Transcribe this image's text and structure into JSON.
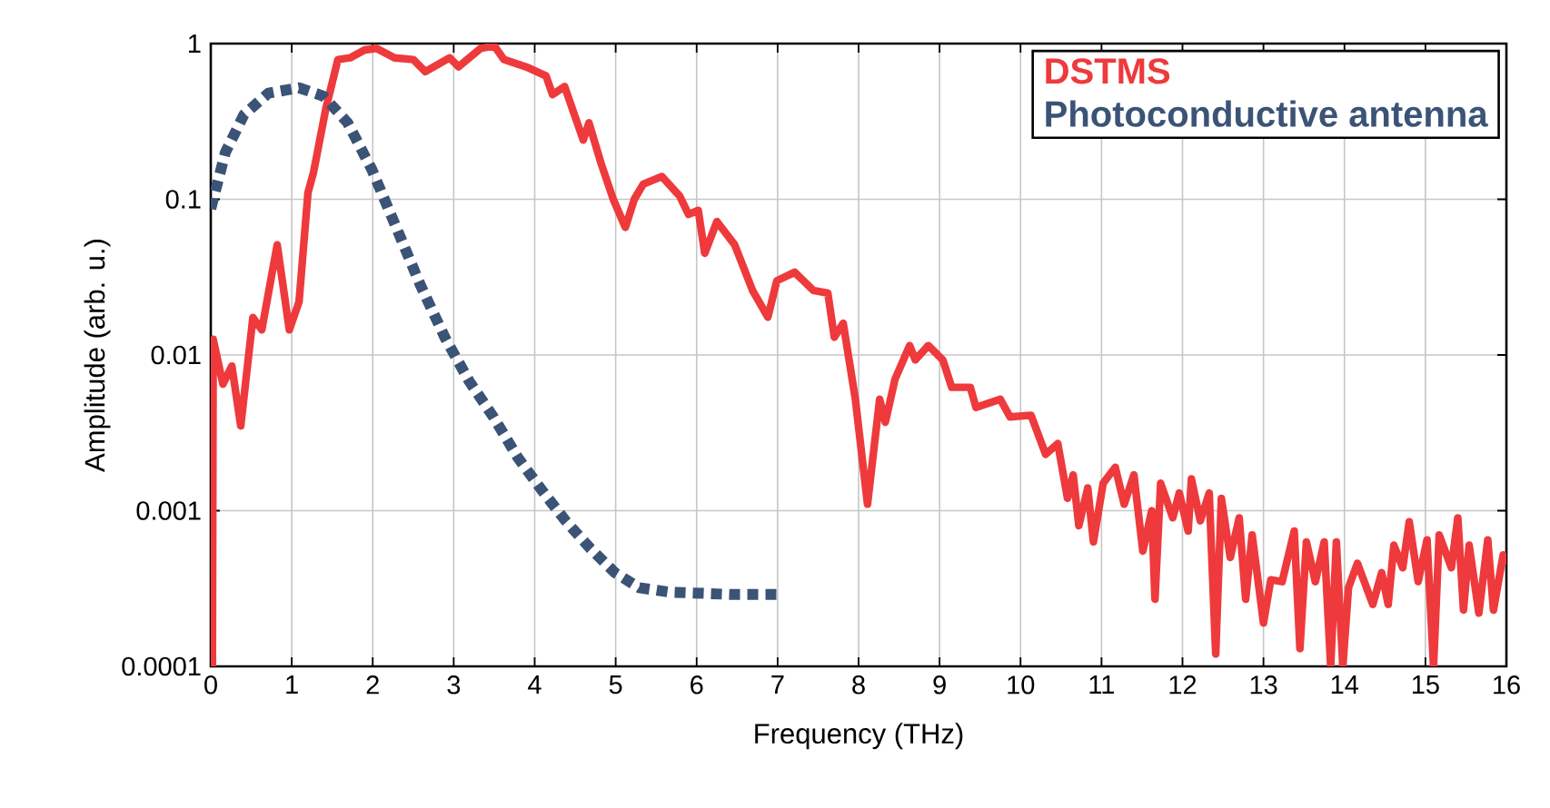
{
  "chart_data": {
    "type": "line",
    "xlabel": "Frequency (THz)",
    "ylabel": "Amplitude (arb. u.)",
    "log": "y",
    "grid": true,
    "legend": "top right",
    "marker": "none",
    "xlim": [
      0,
      16
    ],
    "ylim": [
      0.0001,
      1
    ],
    "xticks": [
      0,
      1,
      2,
      3,
      4,
      5,
      6,
      7,
      8,
      9,
      10,
      11,
      12,
      13,
      14,
      15,
      16
    ],
    "yticks": [
      0.0001,
      0.001,
      0.01,
      0.1,
      1
    ],
    "series": [
      {
        "name": "DSTMS",
        "color": "#ee3a3c",
        "line_style": "solid",
        "x": [
          0.02,
          0.03,
          0.15,
          0.26,
          0.37,
          0.52,
          0.63,
          0.82,
          0.97,
          1.09,
          1.2,
          1.27,
          1.42,
          1.57,
          1.72,
          1.9,
          2.05,
          2.27,
          2.5,
          2.65,
          2.95,
          3.06,
          3.33,
          3.5,
          3.62,
          3.92,
          4.14,
          4.22,
          4.37,
          4.6,
          4.67,
          4.82,
          4.97,
          5.12,
          5.23,
          5.34,
          5.57,
          5.79,
          5.9,
          6.02,
          6.1,
          6.25,
          6.47,
          6.69,
          6.88,
          6.99,
          7.21,
          7.44,
          7.62,
          7.7,
          7.81,
          7.96,
          8.11,
          8.26,
          8.33,
          8.45,
          8.63,
          8.7,
          8.86,
          9.04,
          9.15,
          9.38,
          9.45,
          9.75,
          9.87,
          10.13,
          10.31,
          10.46,
          10.58,
          10.65,
          10.72,
          10.83,
          10.9,
          11.02,
          11.17,
          11.28,
          11.4,
          11.51,
          11.62,
          11.66,
          11.73,
          11.88,
          11.96,
          12.07,
          12.11,
          12.22,
          12.33,
          12.41,
          12.48,
          12.59,
          12.7,
          12.78,
          12.86,
          13.0,
          13.09,
          13.23,
          13.38,
          13.45,
          13.53,
          13.64,
          13.75,
          13.83,
          13.9,
          13.98,
          14.05,
          14.16,
          14.35,
          14.46,
          14.54,
          14.61,
          14.72,
          14.8,
          14.91,
          15.02,
          15.1,
          15.17,
          15.32,
          15.4,
          15.47,
          15.54,
          15.66,
          15.77,
          15.84,
          15.96,
          16
        ],
        "values": [
          0.0001,
          0.0126,
          0.0065,
          0.0085,
          0.0035,
          0.0174,
          0.0145,
          0.051,
          0.0145,
          0.022,
          0.11,
          0.15,
          0.38,
          0.79,
          0.81,
          0.91,
          0.93,
          0.81,
          0.79,
          0.66,
          0.81,
          0.71,
          0.93,
          0.97,
          0.79,
          0.7,
          0.62,
          0.47,
          0.53,
          0.24,
          0.31,
          0.17,
          0.1,
          0.066,
          0.1,
          0.125,
          0.14,
          0.105,
          0.08,
          0.085,
          0.045,
          0.072,
          0.051,
          0.026,
          0.0175,
          0.03,
          0.034,
          0.026,
          0.025,
          0.013,
          0.016,
          0.0052,
          0.0011,
          0.0052,
          0.0037,
          0.007,
          0.0115,
          0.0093,
          0.0115,
          0.0093,
          0.0062,
          0.0062,
          0.0046,
          0.0052,
          0.004,
          0.0041,
          0.0023,
          0.0027,
          0.0012,
          0.0017,
          0.0008,
          0.0014,
          0.00063,
          0.0015,
          0.0019,
          0.0011,
          0.0017,
          0.00055,
          0.001,
          0.00027,
          0.0015,
          0.0009,
          0.0013,
          0.00074,
          0.0016,
          0.00086,
          0.0013,
          0.00012,
          0.0012,
          0.0005,
          0.0009,
          0.00027,
          0.0007,
          0.00019,
          0.00036,
          0.00035,
          0.00074,
          0.00013,
          0.00063,
          0.00035,
          0.00063,
          0.0001,
          0.00063,
          0.0001,
          0.00032,
          0.00046,
          0.00025,
          0.0004,
          0.00025,
          0.0006,
          0.00043,
          0.00085,
          0.00035,
          0.00065,
          0.0001,
          0.0007,
          0.00043,
          0.0009,
          0.00023,
          0.0006,
          0.00022,
          0.00065,
          0.00023,
          0.00052,
          0.00045
        ]
      },
      {
        "name": "Photoconductive antenna",
        "color": "#3b5376",
        "line_style": "dashed",
        "x": [
          0,
          0.18,
          0.41,
          0.71,
          1.09,
          1.39,
          1.69,
          1.99,
          2.29,
          2.59,
          2.89,
          3.19,
          3.49,
          3.79,
          4.09,
          4.39,
          4.69,
          4.99,
          5.29,
          5.66,
          6.41,
          7.05
        ],
        "values": [
          0.087,
          0.2,
          0.35,
          0.48,
          0.52,
          0.46,
          0.31,
          0.155,
          0.066,
          0.028,
          0.013,
          0.0068,
          0.004,
          0.0022,
          0.00135,
          0.00085,
          0.00057,
          0.0004,
          0.00032,
          0.0003,
          0.00029,
          0.00029
        ]
      }
    ]
  }
}
